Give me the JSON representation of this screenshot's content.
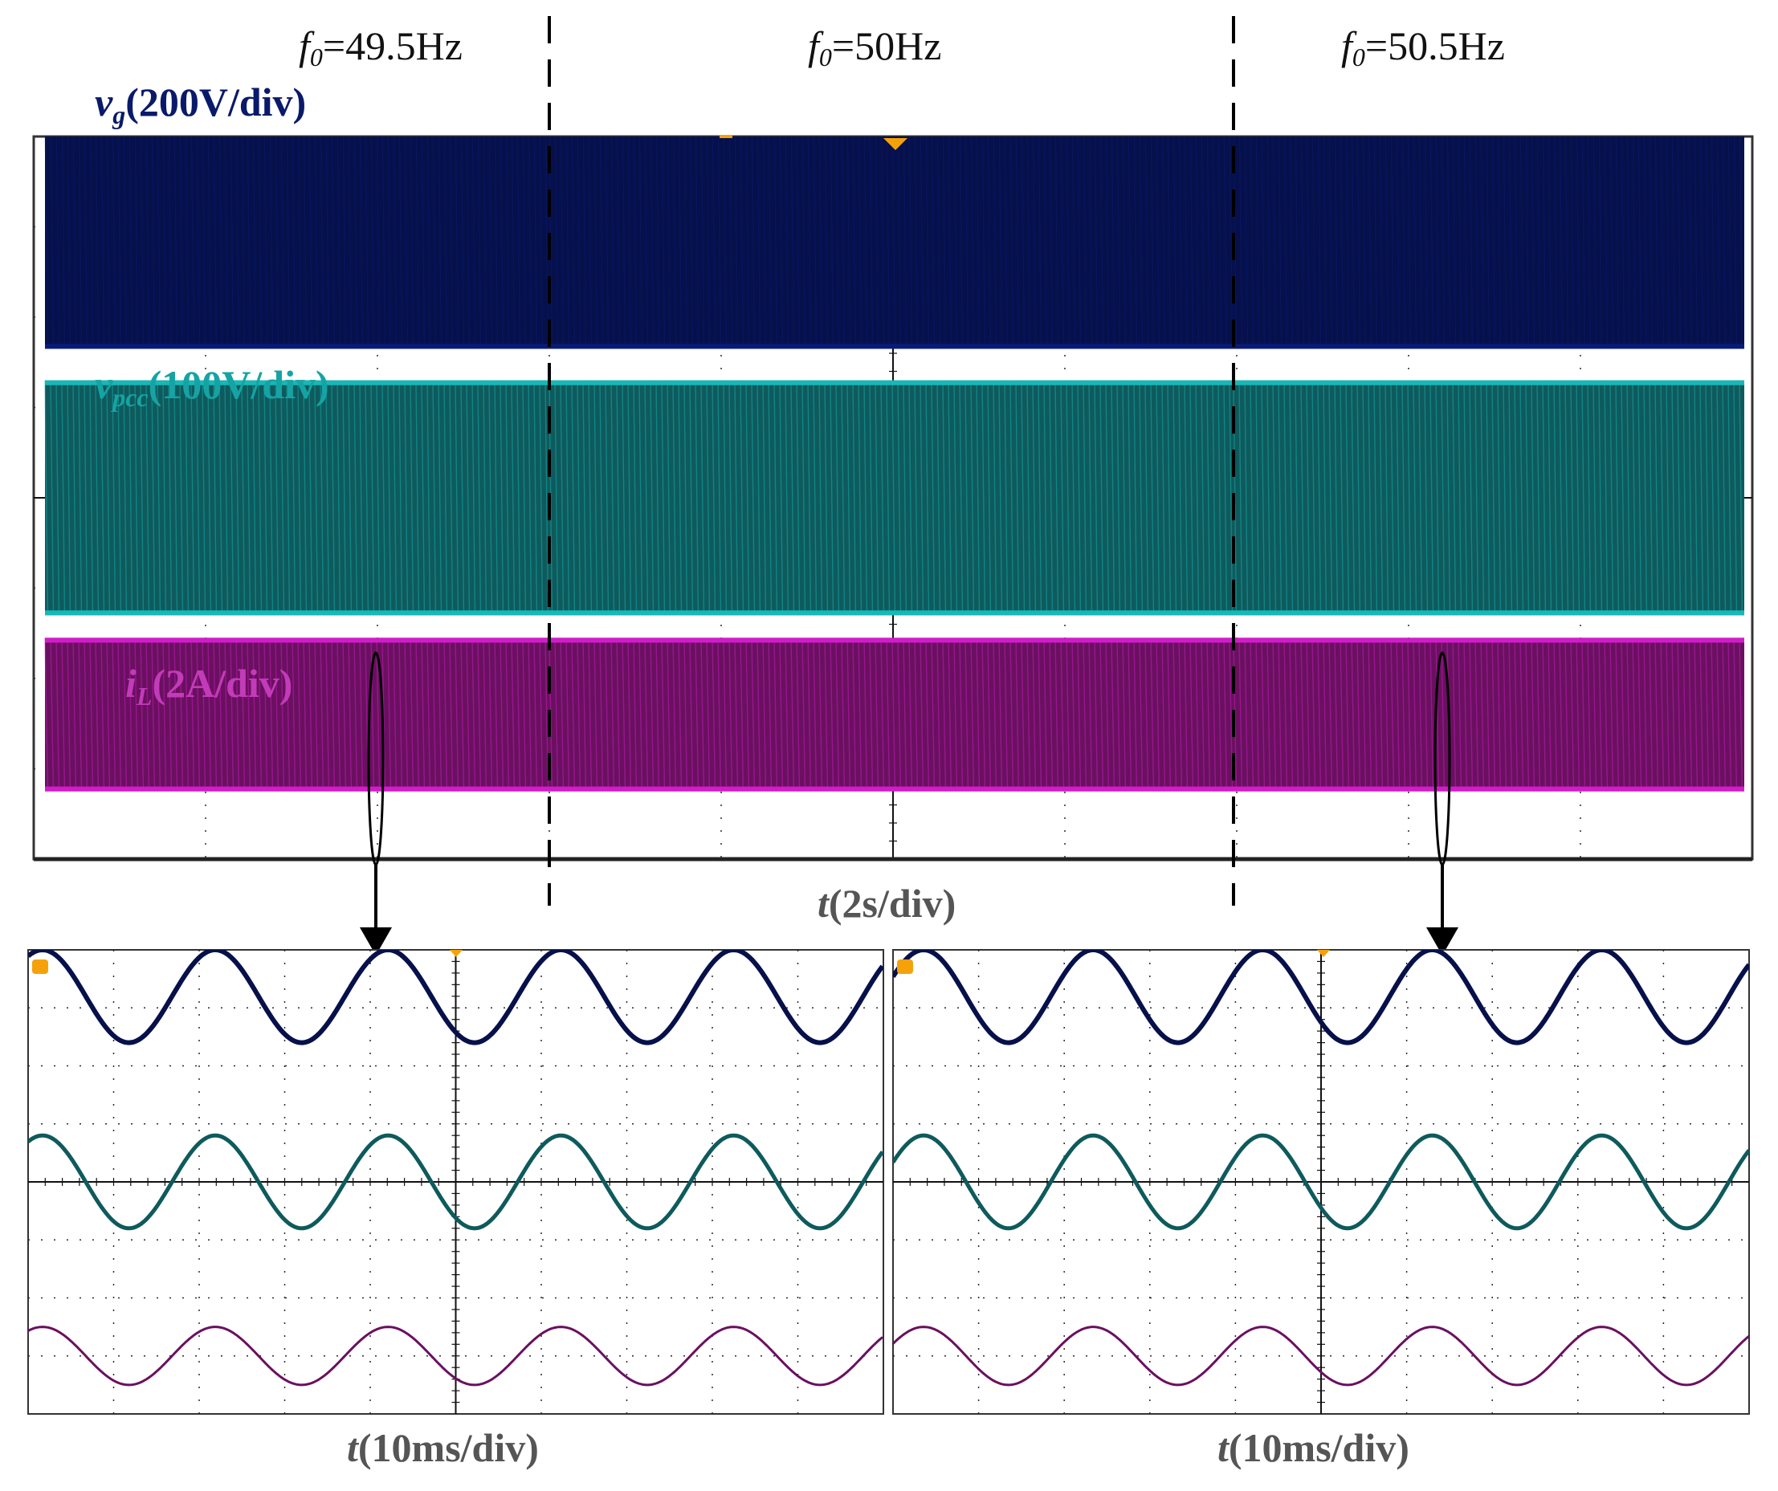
{
  "colors": {
    "vg": "#0a1a7a",
    "vg_dark": "#06104a",
    "vpcc": "#16b8b8",
    "vpcc_dark": "#0e5a5c",
    "il": "#d21cc9",
    "il_dark": "#6a1060",
    "grid": "#2a2a2a",
    "marker": "#f5a20a"
  },
  "frequency_regions": [
    {
      "sym": "f",
      "sub": "0",
      "text": "=49.5Hz"
    },
    {
      "sym": "f",
      "sub": "0",
      "text": "=50Hz"
    },
    {
      "sym": "f",
      "sub": "0",
      "text": "=50.5Hz"
    }
  ],
  "channels": [
    {
      "key": "vg",
      "sym": "v",
      "sub": "g",
      "scale": "(200V/div)"
    },
    {
      "key": "vpcc",
      "sym": "v",
      "sub": "pcc",
      "scale": "(100V/div)"
    },
    {
      "key": "il",
      "sym": "i",
      "sub": "L",
      "scale": "(2A/div)"
    }
  ],
  "axes": {
    "main_time": {
      "sym": "t",
      "text": "(2s/div)"
    },
    "zoom_left_time": {
      "sym": "t",
      "text": "(10ms/div)"
    },
    "zoom_right_time": {
      "sym": "t",
      "text": "(10ms/div)"
    }
  },
  "chart_data": [
    {
      "type": "line",
      "grid": true,
      "divisions": {
        "x": 10,
        "y": 8
      },
      "time_per_div_s": 2,
      "frequency_steps_hz": [
        49.5,
        50,
        50.5
      ],
      "series": [
        {
          "name": "vg",
          "volts_per_div": 200,
          "envelope_div": [
            -1.35,
            1.35
          ],
          "center_div": 3
        },
        {
          "name": "vpcc",
          "volts_per_div": 100,
          "envelope_div": [
            -1.3,
            1.3
          ],
          "center_div": 0
        },
        {
          "name": "iL",
          "amps_per_div": 2,
          "envelope_div_by_region": [
            [
              -0.85,
              0.85
            ],
            [
              -0.85,
              0.85
            ],
            [
              -0.85,
              0.85
            ]
          ],
          "center_div": -2.4
        }
      ]
    },
    {
      "type": "line",
      "grid": true,
      "divisions": {
        "x": 10,
        "y": 8
      },
      "time_per_div_ms": 10,
      "frequency_hz": 49.5,
      "series": [
        {
          "name": "vg",
          "amplitude_div": 0.8,
          "center_div": 3.2
        },
        {
          "name": "vpcc",
          "amplitude_div": 0.8,
          "center_div": 0
        },
        {
          "name": "iL",
          "amplitude_div": 0.5,
          "center_div": -3.0
        }
      ]
    },
    {
      "type": "line",
      "grid": true,
      "divisions": {
        "x": 10,
        "y": 8
      },
      "time_per_div_ms": 10,
      "frequency_hz": 50.5,
      "series": [
        {
          "name": "vg",
          "amplitude_div": 0.8,
          "center_div": 3.2
        },
        {
          "name": "vpcc",
          "amplitude_div": 0.8,
          "center_div": 0
        },
        {
          "name": "iL",
          "amplitude_div": 0.5,
          "center_div": -3.0
        }
      ]
    }
  ]
}
